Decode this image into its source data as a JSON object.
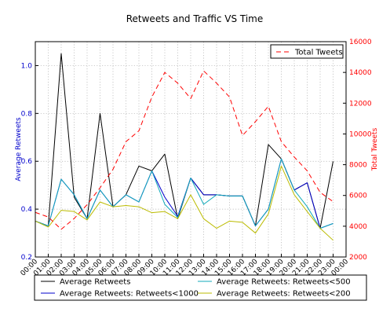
{
  "chart_data": {
    "type": "line",
    "title": "Retweets and Traffic VS Time",
    "xlabel": "",
    "ylabel_left": "Average Retweets",
    "ylabel_right": "Total Tweets",
    "categories": [
      "00:00",
      "01:00",
      "02:00",
      "03:00",
      "04:00",
      "05:00",
      "06:00",
      "07:00",
      "08:00",
      "09:00",
      "10:00",
      "11:00",
      "12:00",
      "13:00",
      "14:00",
      "15:00",
      "16:00",
      "17:00",
      "18:00",
      "19:00",
      "20:00",
      "21:00",
      "22:00",
      "23:00",
      "00:00"
    ],
    "ylim_left": [
      0.2,
      1.1
    ],
    "ylim_right": [
      2000,
      16000
    ],
    "yticks_left": [
      "0.2",
      "0.4",
      "0.6",
      "0.8",
      "1.0"
    ],
    "yticks_left_values": [
      0.2,
      0.4,
      0.6,
      0.8,
      1.0
    ],
    "yticks_right": [
      "2000",
      "4000",
      "6000",
      "8000",
      "10000",
      "12000",
      "14000",
      "16000"
    ],
    "yticks_right_values": [
      2000,
      4000,
      6000,
      8000,
      10000,
      12000,
      14000,
      16000
    ],
    "grid": true,
    "legend_top": {
      "placement": "top-right",
      "entries": [
        "Total Tweets"
      ]
    },
    "legend_bottom": {
      "placement": "bottom",
      "entries": [
        "Average Retweets",
        "Average Retweets: Retweets<1000",
        "Average Retweets: Retweets<500",
        "Average Retweets: Retweets<200"
      ]
    },
    "series": [
      {
        "name": "Average Retweets",
        "axis": "left",
        "color": "#000000",
        "dash": "none",
        "values": [
          0.35,
          0.33,
          1.05,
          0.45,
          0.36,
          0.8,
          0.41,
          0.46,
          0.58,
          0.56,
          0.63,
          0.36,
          0.53,
          0.46,
          0.46,
          0.455,
          0.455,
          0.33,
          0.67,
          0.61,
          0.48,
          0.51,
          0.32,
          0.6,
          null
        ]
      },
      {
        "name": "Average Retweets: Retweets<1000",
        "axis": "left",
        "color": "#0000cc",
        "dash": "none",
        "values": [
          0.35,
          0.33,
          0.525,
          0.46,
          0.36,
          0.48,
          0.41,
          0.46,
          0.43,
          0.56,
          0.45,
          0.37,
          0.53,
          0.46,
          0.46,
          0.455,
          0.455,
          0.33,
          0.4,
          0.61,
          0.48,
          0.51,
          0.32,
          0.34,
          null
        ]
      },
      {
        "name": "Average Retweets: Retweets<500",
        "axis": "left",
        "color": "#11aabb",
        "dash": "none",
        "values": [
          0.35,
          0.33,
          0.525,
          0.46,
          0.36,
          0.48,
          0.41,
          0.46,
          0.43,
          0.56,
          0.42,
          0.365,
          0.53,
          0.42,
          0.46,
          0.455,
          0.455,
          0.33,
          0.4,
          0.61,
          0.48,
          0.41,
          0.32,
          0.34,
          null
        ]
      },
      {
        "name": "Average Retweets: Retweets<200",
        "axis": "left",
        "color": "#bbbb00",
        "dash": "none",
        "values": [
          0.35,
          0.325,
          0.395,
          0.39,
          0.355,
          0.43,
          0.41,
          0.415,
          0.41,
          0.385,
          0.39,
          0.36,
          0.46,
          0.36,
          0.32,
          0.35,
          0.345,
          0.3,
          0.38,
          0.58,
          0.46,
          0.39,
          0.32,
          0.27,
          null
        ]
      },
      {
        "name": "Total Tweets",
        "axis": "right",
        "color": "#ff0000",
        "dash": "6 4",
        "values": [
          4900,
          4600,
          3800,
          4500,
          5400,
          6500,
          7700,
          9500,
          10200,
          12400,
          14000,
          13300,
          12300,
          14100,
          13300,
          12400,
          9900,
          10800,
          11800,
          9500,
          8500,
          7600,
          6200,
          5600,
          null
        ]
      }
    ]
  }
}
